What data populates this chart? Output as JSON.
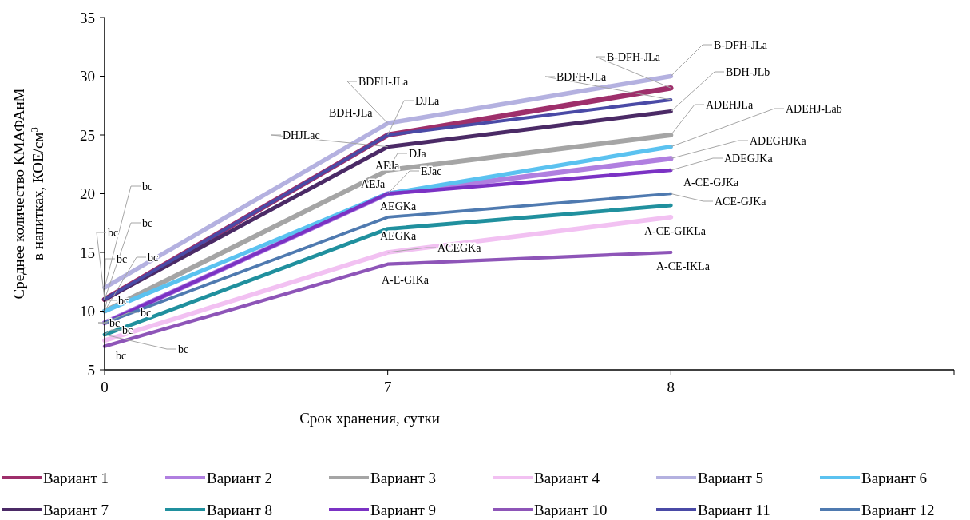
{
  "chart_data": {
    "type": "line",
    "xlabel": "Срок хранения, сутки",
    "ylabel": "Среднее количество КМАФАнМ\nв напитках, КОЕ/см$^{3}$",
    "categories": [
      "0",
      "7",
      "8",
      null
    ],
    "ylim": [
      5,
      35
    ],
    "yticks": [
      5,
      10,
      15,
      20,
      25,
      30,
      35
    ],
    "grid": false,
    "legend": "bottom",
    "marker": "none",
    "line_style": "solid",
    "series": [
      {
        "name": "Вариант 1",
        "color": "#9e2f6b",
        "values": [
          11,
          25,
          29,
          null
        ]
      },
      {
        "name": "Вариант 2",
        "color": "#b07fe0",
        "values": [
          9,
          20,
          23,
          null
        ]
      },
      {
        "name": "Вариант 3",
        "color": "#a5a5a5",
        "values": [
          10,
          22,
          25,
          null
        ]
      },
      {
        "name": "Вариант 4",
        "color": "#f2c1f2",
        "values": [
          7.5,
          15,
          18,
          null
        ]
      },
      {
        "name": "Вариант 5",
        "color": "#b4b1e0",
        "values": [
          12,
          26,
          30,
          null
        ]
      },
      {
        "name": "Вариант 6",
        "color": "#5bc2f0",
        "values": [
          10,
          20,
          24,
          null
        ]
      },
      {
        "name": "Вариант 7",
        "color": "#4b2a66",
        "values": [
          11,
          24,
          27,
          null
        ]
      },
      {
        "name": "Вариант 8",
        "color": "#20909e",
        "values": [
          8,
          17,
          19,
          null
        ]
      },
      {
        "name": "Вариант 9",
        "color": "#7b32c4",
        "values": [
          9,
          20,
          22,
          null
        ]
      },
      {
        "name": "Вариант 10",
        "color": "#8e55b8",
        "values": [
          7,
          14,
          15,
          null
        ]
      },
      {
        "name": "Вариант 11",
        "color": "#4a4aa6",
        "values": [
          11,
          25,
          28,
          null
        ]
      },
      {
        "name": "Вариант 12",
        "color": "#4f7ab0",
        "values": [
          9,
          18,
          20,
          null
        ]
      }
    ],
    "annotations": [
      {
        "text": "bc",
        "x": "0",
        "y": 12
      },
      {
        "text": "bc",
        "x": "0",
        "y": 11
      },
      {
        "text": "bc",
        "x": "0",
        "y": 11
      },
      {
        "text": "bc",
        "x": "0",
        "y": 11
      },
      {
        "text": "bc",
        "x": "0",
        "y": 10
      },
      {
        "text": "bc",
        "x": "0",
        "y": 10
      },
      {
        "text": "bc",
        "x": "0",
        "y": 9
      },
      {
        "text": "bc",
        "x": "0",
        "y": 9
      },
      {
        "text": "bc",
        "x": "0",
        "y": 8
      },
      {
        "text": "bc",
        "x": "0",
        "y": 8
      },
      {
        "text": "bc",
        "x": "0",
        "y": 7
      },
      {
        "text": "BDFH-JLa",
        "x": "7",
        "y": 26
      },
      {
        "text": "BDH-JLa",
        "x": "7",
        "y": 25
      },
      {
        "text": "DJLa",
        "x": "7",
        "y": 25
      },
      {
        "text": "DHJLac",
        "x": "7",
        "y": 24
      },
      {
        "text": "DJa",
        "x": "7",
        "y": 22
      },
      {
        "text": "AEJa",
        "x": "7",
        "y": 22
      },
      {
        "text": "AEJa",
        "x": "7",
        "y": 20
      },
      {
        "text": "EJac",
        "x": "7",
        "y": 20
      },
      {
        "text": "AEGKa",
        "x": "7",
        "y": 18
      },
      {
        "text": "AEGKa",
        "x": "7",
        "y": 17
      },
      {
        "text": "ACEGKa",
        "x": "7",
        "y": 15
      },
      {
        "text": "A-E-GIKa",
        "x": "7",
        "y": 14
      },
      {
        "text": "B-DFH-JLa",
        "x": "8",
        "y": 30
      },
      {
        "text": "B-DFH-JLa",
        "x": "8",
        "y": 29
      },
      {
        "text": "BDFH-JLa",
        "x": "8",
        "y": 28
      },
      {
        "text": "BDH-JLb",
        "x": "8",
        "y": 27
      },
      {
        "text": "ADEHJLa",
        "x": "8",
        "y": 25
      },
      {
        "text": "ADEHJ-Lab",
        "x": "8",
        "y": 24
      },
      {
        "text": "ADEGHJKa",
        "x": "8",
        "y": 23
      },
      {
        "text": "ADEGJKa",
        "x": "8",
        "y": 22
      },
      "A-CE-GJKa",
      {
        "text": "ACE-GJKa",
        "x": "8",
        "y": 20
      },
      {
        "text": "A-CE-GIKLa",
        "x": "8",
        "y": 18
      },
      {
        "text": "A-CE-IKLa",
        "x": "8",
        "y": 15
      }
    ]
  }
}
